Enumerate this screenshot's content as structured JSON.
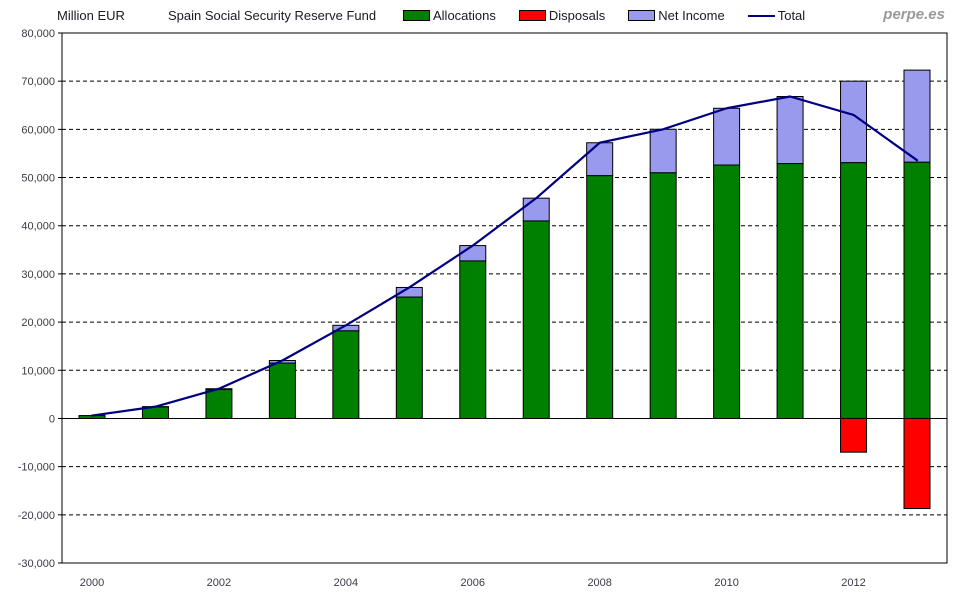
{
  "header": {
    "unit_label": "Million EUR",
    "title": "Spain Social Security Reserve Fund",
    "watermark": "perpe.es"
  },
  "legend": {
    "position": "top",
    "items": [
      {
        "label": "Allocations",
        "color": "#008000",
        "swatch": "box"
      },
      {
        "label": "Disposals",
        "color": "#FF0000",
        "swatch": "box"
      },
      {
        "label": "Net Income",
        "color": "#9999EE",
        "swatch": "box"
      },
      {
        "label": "Total",
        "color": "#000080",
        "swatch": "line"
      }
    ]
  },
  "chart_data": {
    "type": "bar",
    "subtype": "stacked bars with overlaid line",
    "title": "Spain Social Security Reserve Fund",
    "unit": "Million EUR",
    "categories": [
      2000,
      2001,
      2002,
      2003,
      2004,
      2005,
      2006,
      2007,
      2008,
      2009,
      2010,
      2011,
      2012,
      2013
    ],
    "series": [
      {
        "name": "Allocations",
        "render": "stacked-bar",
        "color": "#008000",
        "values": [
          600,
          2400,
          6000,
          11500,
          18200,
          25200,
          32700,
          41000,
          50400,
          51000,
          52600,
          52900,
          53100,
          53200
        ]
      },
      {
        "name": "Net Income",
        "render": "stacked-bar",
        "color": "#9999EE",
        "values": [
          0,
          50,
          170,
          530,
          1130,
          1990,
          3180,
          4720,
          6820,
          9020,
          11780,
          13920,
          16900,
          19100
        ]
      },
      {
        "name": "Disposals",
        "render": "negative-bar",
        "color": "#FF0000",
        "values": [
          0,
          0,
          0,
          0,
          0,
          0,
          0,
          0,
          0,
          0,
          0,
          0,
          -7000,
          -18700
        ]
      },
      {
        "name": "Total",
        "render": "line",
        "color": "#000080",
        "values": [
          600,
          2450,
          6170,
          12030,
          19330,
          27190,
          35880,
          45720,
          57220,
          60020,
          64380,
          66820,
          63000,
          53600
        ]
      }
    ],
    "y_axis": {
      "min": -30000,
      "max": 80000,
      "step": 10000,
      "label": "Million EUR",
      "tick_format": "thousands-comma"
    },
    "x_axis": {
      "tick_years": [
        2000,
        2002,
        2004,
        2006,
        2008,
        2010,
        2012
      ]
    },
    "grid": "horizontal dashed lines every 10,000; solid line at 0; solid plot border",
    "legend_position": "top",
    "colors": {
      "tick_text": "#3a3a4a",
      "grid": "#000000"
    }
  }
}
